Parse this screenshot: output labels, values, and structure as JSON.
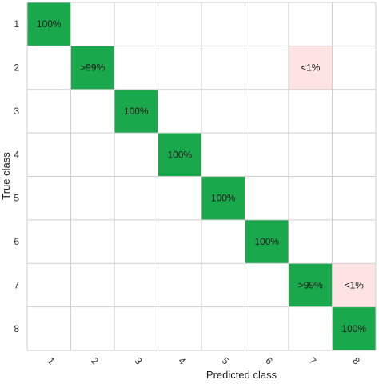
{
  "chart_data": {
    "type": "heatmap",
    "title": "",
    "xlabel": "Predicted class",
    "ylabel": "True class",
    "x_categories": [
      "1",
      "2",
      "3",
      "4",
      "5",
      "6",
      "7",
      "8"
    ],
    "y_categories": [
      "1",
      "2",
      "3",
      "4",
      "5",
      "6",
      "7",
      "8"
    ],
    "cells": [
      {
        "true": "1",
        "predicted": "1",
        "label": "100%",
        "kind": "correct"
      },
      {
        "true": "2",
        "predicted": "2",
        "label": ">99%",
        "kind": "correct"
      },
      {
        "true": "2",
        "predicted": "7",
        "label": "<1%",
        "kind": "error"
      },
      {
        "true": "3",
        "predicted": "3",
        "label": "100%",
        "kind": "correct"
      },
      {
        "true": "4",
        "predicted": "4",
        "label": "100%",
        "kind": "correct"
      },
      {
        "true": "5",
        "predicted": "5",
        "label": "100%",
        "kind": "correct"
      },
      {
        "true": "6",
        "predicted": "6",
        "label": "100%",
        "kind": "correct"
      },
      {
        "true": "7",
        "predicted": "7",
        "label": ">99%",
        "kind": "correct"
      },
      {
        "true": "7",
        "predicted": "8",
        "label": "<1%",
        "kind": "error"
      },
      {
        "true": "8",
        "predicted": "8",
        "label": "100%",
        "kind": "correct"
      }
    ],
    "colors": {
      "correct": "#19a84c",
      "error": "#fde3e3",
      "empty": "#ffffff",
      "grid": "#cfcfcf"
    },
    "grid": true,
    "legend": "none"
  }
}
